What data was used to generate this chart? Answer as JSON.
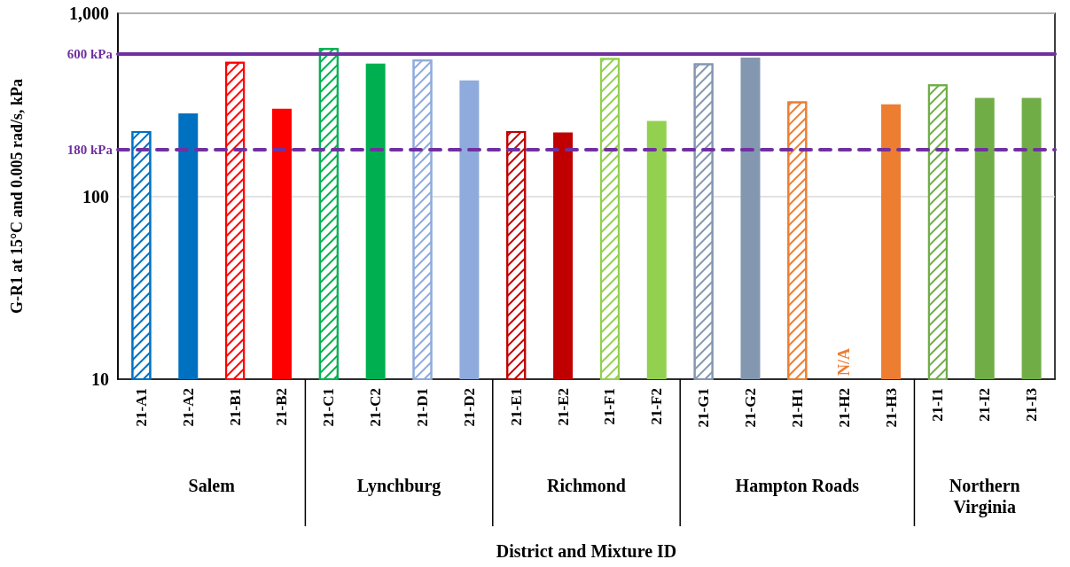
{
  "chart_data": {
    "type": "bar",
    "ylabel": "G-R1 at 15°C and 0.005 rad/s, kPa",
    "categories": [
      "21-A1",
      "21-A2",
      "21-B1",
      "21-B2",
      "21-C1",
      "21-C2",
      "21-D1",
      "21-D2",
      "21-E1",
      "21-E2",
      "21-F1",
      "21-F2",
      "21-G1",
      "21-G2",
      "21-H1",
      "21-H2",
      "21-H3",
      "21-I1",
      "21-I2",
      "21-I3"
    ],
    "series": [
      {
        "values": [
          227,
          null,
          543,
          null,
          646,
          null,
          558,
          null,
          227,
          null,
          570,
          null,
          533,
          null,
          330,
          null,
          null,
          409,
          null,
          null
        ],
        "colors": [
          "#0070c0",
          "#0070c0",
          "#ff0000",
          "#ff0000",
          "#00b050",
          "#00b050",
          "#8faadc",
          "#8faadc",
          "#c00000",
          "#c00000",
          "#92d050",
          "#92d050",
          "#8497b0",
          "#8497b0",
          "#ed7d31",
          "#ed7d31",
          "#ed7d31",
          "#70ad47",
          "#70ad47",
          "#70ad47"
        ]
      },
      {
        "values": [
          null,
          284,
          null,
          301,
          null,
          531,
          null,
          430,
          null,
          223,
          null,
          258,
          null,
          573,
          null,
          null,
          318,
          null,
          345,
          345
        ],
        "colors": [
          "#0070c0",
          "#0070c0",
          "#ff0000",
          "#ff0000",
          "#00b050",
          "#00b050",
          "#8faadc",
          "#8faadc",
          "#c00000",
          "#c00000",
          "#92d050",
          "#92d050",
          "#8497b0",
          "#8497b0",
          "#ed7d31",
          "#ed7d31",
          "#ed7d31",
          "#70ad47",
          "#70ad47",
          "#70ad47"
        ]
      }
    ],
    "log": "y",
    "ylim": [
      10,
      1000
    ],
    "yticks": [
      10,
      100,
      {
        "value": 1000,
        "label": "1,000"
      }
    ],
    "grid": "y",
    "ref_lines": [
      {
        "axis": "y",
        "value": 600,
        "label": "600 kPa",
        "color": "#7030a0",
        "line_style": "solid"
      },
      {
        "axis": "y",
        "value": 180,
        "label": "180 kPa",
        "color": "#7030a0",
        "line_style": "dashed"
      }
    ],
    "annotations": [
      "Salem",
      "Lynchburg",
      "Richmond",
      "Hampton Roads",
      "Northern\nVirginia",
      "N/A",
      "District and Mixture ID"
    ]
  }
}
